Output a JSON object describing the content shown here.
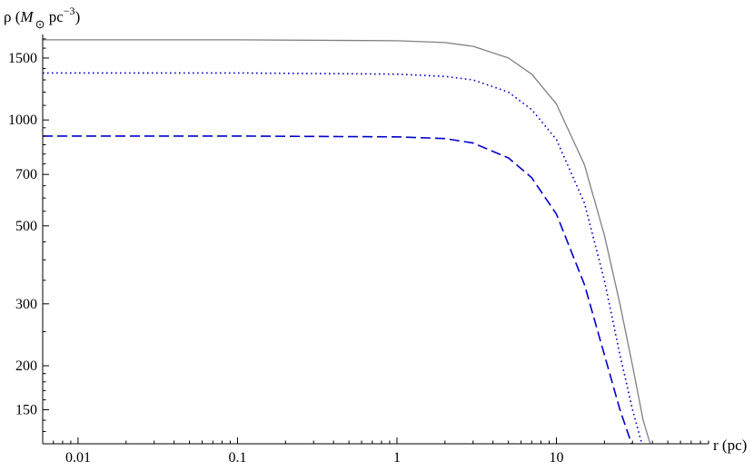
{
  "chart_data": {
    "type": "line",
    "title": "",
    "xlabel": "r (pc)",
    "ylabel": {
      "prefix": "ρ (",
      "mass_symbol": "M",
      "subscript": "⊙",
      "unit": " pc",
      "exponent": "−3",
      "suffix": ")"
    },
    "xscale": "log",
    "yscale": "log",
    "xlim": [
      0.006,
      90
    ],
    "ylim": [
      120,
      1750
    ],
    "x_ticks": [
      {
        "value": 0.01,
        "label": "0.01"
      },
      {
        "value": 0.1,
        "label": "0.1"
      },
      {
        "value": 1,
        "label": "1"
      },
      {
        "value": 10,
        "label": "10"
      }
    ],
    "y_ticks": [
      {
        "value": 150,
        "label": "150"
      },
      {
        "value": 200,
        "label": "200"
      },
      {
        "value": 300,
        "label": "300"
      },
      {
        "value": 500,
        "label": "500"
      },
      {
        "value": 700,
        "label": "700"
      },
      {
        "value": 1000,
        "label": "1000"
      },
      {
        "value": 1500,
        "label": "1500"
      }
    ],
    "grid": false,
    "legend": "none",
    "series": [
      {
        "style": "solid",
        "color": "#808080",
        "x": [
          0.006,
          0.1,
          1,
          2,
          3,
          5,
          7,
          10,
          15,
          20,
          25,
          30,
          35,
          38.7
        ],
        "y": [
          1690,
          1690,
          1680,
          1660,
          1620,
          1500,
          1350,
          1110,
          745,
          470,
          300,
          200,
          140,
          120
        ]
      },
      {
        "style": "dotted",
        "color": "#0000cc",
        "x": [
          0.006,
          0.1,
          1,
          2,
          3,
          5,
          7,
          10,
          15,
          20,
          25,
          30,
          34.3
        ],
        "y": [
          1360,
          1360,
          1350,
          1330,
          1300,
          1200,
          1070,
          880,
          580,
          350,
          215,
          150,
          120
        ]
      },
      {
        "style": "dashed",
        "color": "#0000cc",
        "x": [
          0.006,
          0.1,
          1,
          2,
          3,
          5,
          7,
          10,
          15,
          20,
          25,
          29.6
        ],
        "y": [
          900,
          900,
          895,
          885,
          860,
          780,
          685,
          540,
          340,
          215,
          150,
          120
        ]
      }
    ]
  }
}
